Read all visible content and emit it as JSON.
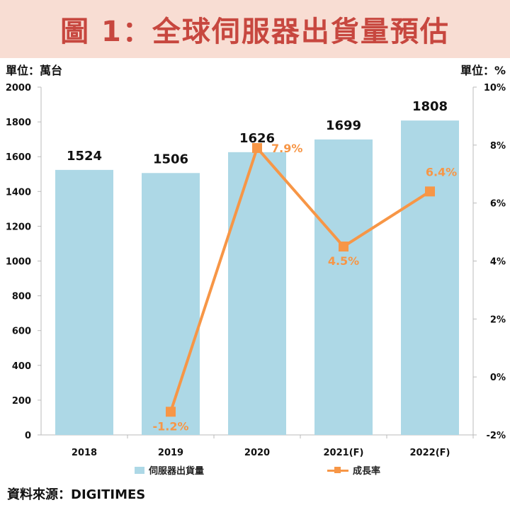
{
  "title": "圖 1：全球伺服器出貨量預估",
  "unit_left": "單位：萬台",
  "unit_right": "單位：%",
  "source": "資料來源：DIGITIMES",
  "colors": {
    "bar": "#add8e6",
    "line": "#f79646",
    "title_bg": "#f8ddd3",
    "title_text": "#c7473f"
  },
  "chart_data": {
    "type": "bar",
    "categories": [
      "2018",
      "2019",
      "2020",
      "2021(F)",
      "2022(F)"
    ],
    "series": [
      {
        "name": "伺服器出貨量",
        "type": "bar",
        "axis": "left",
        "values": [
          1524,
          1506,
          1626,
          1699,
          1808
        ],
        "labels": [
          "1524",
          "1506",
          "1626",
          "1699",
          "1808"
        ]
      },
      {
        "name": "成長率",
        "type": "line",
        "axis": "right",
        "values": [
          null,
          -1.2,
          7.9,
          4.5,
          6.4
        ],
        "labels": [
          "",
          "-1.2%",
          "7.9%",
          "4.5%",
          "6.4%"
        ]
      }
    ],
    "y_left": {
      "range": [
        0,
        2000
      ],
      "ticks": [
        "0",
        "200",
        "400",
        "600",
        "800",
        "1000",
        "1200",
        "1400",
        "1600",
        "1800",
        "2000"
      ]
    },
    "y_right": {
      "range": [
        -2,
        10
      ],
      "ticks": [
        "-2%",
        "0%",
        "2%",
        "4%",
        "6%",
        "8%",
        "10%"
      ]
    },
    "grid": false,
    "legend": "bottom"
  }
}
